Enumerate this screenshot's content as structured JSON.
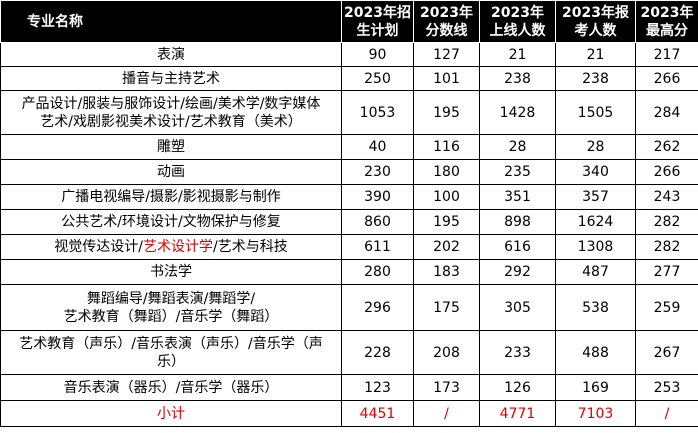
{
  "header": {
    "name": "专业名称",
    "c1": [
      "2023年招",
      "生计划"
    ],
    "c2": [
      "2023年",
      "分数线"
    ],
    "c3": [
      "2023年",
      "上线人数"
    ],
    "c4": [
      "2023年报",
      "考人数"
    ],
    "c5": [
      "2023年",
      "最高分"
    ]
  },
  "rows": [
    {
      "name": "表演",
      "plan": "90",
      "line": "127",
      "pass": "21",
      "apply": "21",
      "max": "217"
    },
    {
      "name": "播音与主持艺术",
      "plan": "250",
      "line": "101",
      "pass": "238",
      "apply": "238",
      "max": "266"
    },
    {
      "name_lines": [
        "产品设计/服装与服饰设计/绘画/美术学/数字媒体",
        "艺术/戏剧影视美术设计/艺术教育（美术）"
      ],
      "plan": "1053",
      "line": "195",
      "pass": "1428",
      "apply": "1505",
      "max": "284"
    },
    {
      "name": "雕塑",
      "plan": "40",
      "line": "116",
      "pass": "28",
      "apply": "28",
      "max": "262"
    },
    {
      "name": "动画",
      "plan": "230",
      "line": "180",
      "pass": "235",
      "apply": "340",
      "max": "266"
    },
    {
      "name": "广播电视编导/摄影/影视摄影与制作",
      "plan": "390",
      "line": "100",
      "pass": "351",
      "apply": "357",
      "max": "243"
    },
    {
      "name": "公共艺术/环境设计/文物保护与修复",
      "plan": "860",
      "line": "195",
      "pass": "898",
      "apply": "1624",
      "max": "282"
    },
    {
      "name_parts": [
        "视觉传达设计/",
        "艺术设计学",
        "/艺术与科技"
      ],
      "plan": "611",
      "line": "202",
      "pass": "616",
      "apply": "1308",
      "max": "282"
    },
    {
      "name": "书法学",
      "plan": "280",
      "line": "183",
      "pass": "292",
      "apply": "487",
      "max": "277"
    },
    {
      "name_lines": [
        "舞蹈编导/舞蹈表演/舞蹈学/",
        "艺术教育（舞蹈）/音乐学（舞蹈）"
      ],
      "plan": "296",
      "line": "175",
      "pass": "305",
      "apply": "538",
      "max": "259"
    },
    {
      "name_lines": [
        "艺术教育（声乐）/音乐表演（声乐）/音乐学（声",
        "乐）"
      ],
      "plan": "228",
      "line": "208",
      "pass": "233",
      "apply": "488",
      "max": "267"
    },
    {
      "name": "音乐表演（器乐）/音乐学（器乐）",
      "plan": "123",
      "line": "173",
      "pass": "126",
      "apply": "169",
      "max": "253"
    }
  ],
  "total": {
    "name": "小计",
    "plan": "4451",
    "line": "/",
    "pass": "4771",
    "apply": "7103",
    "max": "/"
  },
  "colors": {
    "highlight": "#e00000",
    "header_bg": "#000000"
  }
}
